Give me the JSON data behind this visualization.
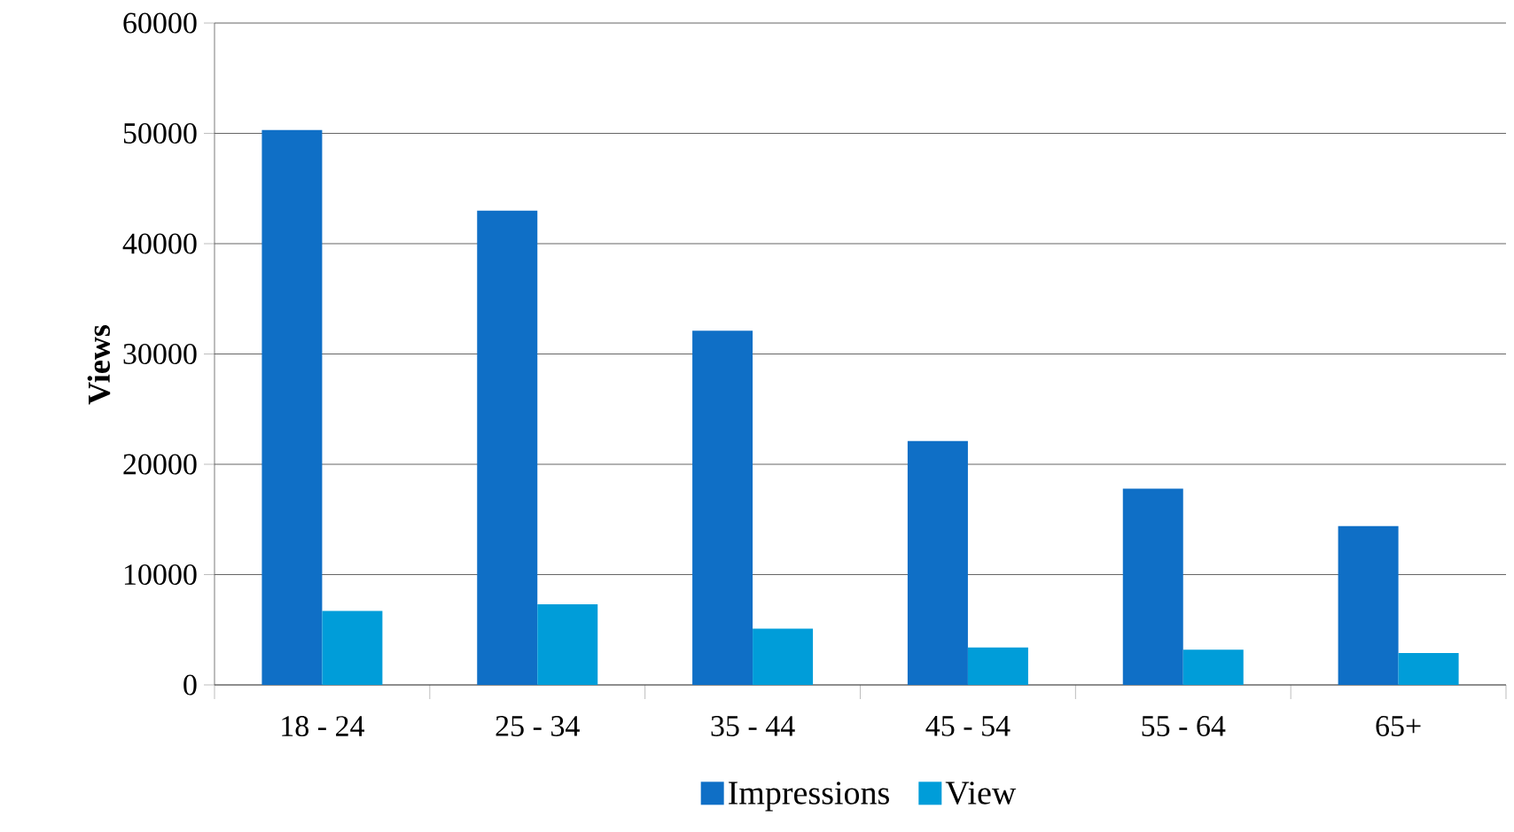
{
  "chart_data": {
    "type": "bar",
    "ylabel": "Views",
    "categories": [
      "18 - 24",
      "25 - 34",
      "35 - 44",
      "45 - 54",
      "55 - 64",
      "65+"
    ],
    "series": [
      {
        "name": "Impressions",
        "color": "#0f6fc6",
        "values": [
          50300,
          43000,
          32100,
          22100,
          17800,
          14400
        ]
      },
      {
        "name": "View",
        "color": "#009dd9",
        "values": [
          6700,
          7300,
          5100,
          3400,
          3200,
          2900
        ]
      }
    ],
    "ylim": [
      0,
      60000
    ],
    "yticks": [
      0,
      10000,
      20000,
      30000,
      40000,
      50000,
      60000
    ],
    "grid": "y",
    "legend": "bottom"
  }
}
